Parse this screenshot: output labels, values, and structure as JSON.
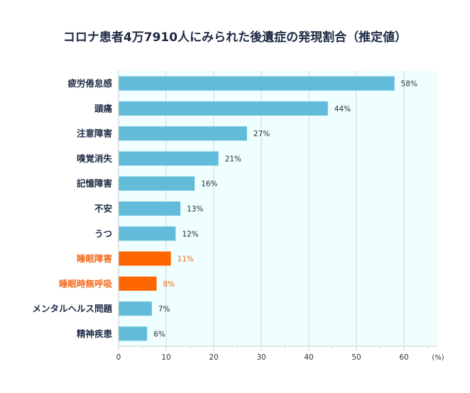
{
  "chart_data": {
    "type": "bar",
    "orientation": "horizontal",
    "title": "コロナ患者4万7910人にみられた後遺症の発現割合（推定値）",
    "categories": [
      "疲労倦怠感",
      "頭痛",
      "注意障害",
      "嗅覚消失",
      "記憶障害",
      "不安",
      "うつ",
      "睡眠障害",
      "睡眠時無呼吸",
      "メンタルヘルス問題",
      "精神疾患"
    ],
    "values": [
      58,
      44,
      27,
      21,
      16,
      13,
      12,
      11,
      8,
      7,
      6
    ],
    "value_labels": [
      "58%",
      "44%",
      "27%",
      "21%",
      "16%",
      "13%",
      "12%",
      "11%",
      "8%",
      "7%",
      "6%"
    ],
    "highlighted": [
      false,
      false,
      false,
      false,
      false,
      false,
      false,
      true,
      true,
      false,
      false
    ],
    "xlabel": "(%)",
    "ylabel": "",
    "xlim": [
      0,
      67
    ],
    "x_ticks": [
      0,
      10,
      20,
      30,
      40,
      50,
      60
    ],
    "x_tick_labels": [
      "0",
      "10",
      "20",
      "30",
      "40",
      "50",
      "60"
    ],
    "x_minor_ticks": [
      5,
      15,
      25,
      35,
      45,
      55,
      65
    ],
    "grid": true,
    "colors": {
      "bar": "#62bcd9",
      "bar_highlight": "#ff6600",
      "label": "#1d2a44",
      "label_highlight": "#f26a1b",
      "plot_bg": "#effeff",
      "grid": "#d3d7da"
    }
  }
}
